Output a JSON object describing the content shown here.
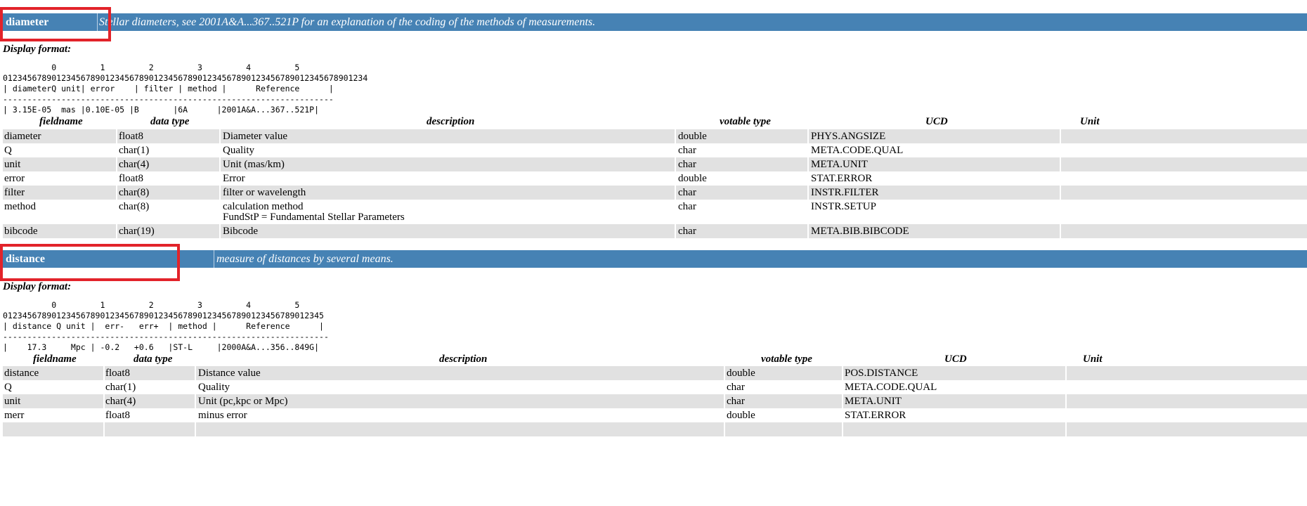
{
  "sections": [
    {
      "name": "diameter",
      "description": "Stellar diameters, see 2001A&A...367..521P for an explanation of the coding of the methods of measurements.",
      "display_format_label": "Display format:",
      "format_lines": [
        "          0         1         2         3         4         5",
        "012345678901234567890123456789012345678901234567890123456789012345678901234",
        "| diameterQ unit| error    | filter | method |      Reference      |",
        "--------------------------------------------------------------------",
        "| 3.15E-05  mas |0.10E-05 |B       |6A      |2001A&A...367..521P|"
      ],
      "columns": [
        "fieldname",
        "data type",
        "description",
        "votable type",
        "UCD",
        "Unit"
      ],
      "rows": [
        {
          "fieldname": "diameter",
          "datatype": "float8",
          "description": "Diameter value",
          "description2": "",
          "votable": "double",
          "ucd": "PHYS.ANGSIZE",
          "unit": ""
        },
        {
          "fieldname": "Q",
          "datatype": "char(1)",
          "description": "Quality",
          "description2": "",
          "votable": "char",
          "ucd": "META.CODE.QUAL",
          "unit": ""
        },
        {
          "fieldname": "unit",
          "datatype": "char(4)",
          "description": "Unit (mas/km)",
          "description2": "",
          "votable": "char",
          "ucd": "META.UNIT",
          "unit": ""
        },
        {
          "fieldname": "error",
          "datatype": "float8",
          "description": "Error",
          "description2": "",
          "votable": "double",
          "ucd": "STAT.ERROR",
          "unit": ""
        },
        {
          "fieldname": "filter",
          "datatype": "char(8)",
          "description": "filter or wavelength",
          "description2": "",
          "votable": "char",
          "ucd": "INSTR.FILTER",
          "unit": ""
        },
        {
          "fieldname": "method",
          "datatype": "char(8)",
          "description": "calculation method",
          "description2": "FundStP = Fundamental Stellar Parameters",
          "votable": "char",
          "ucd": "INSTR.SETUP",
          "unit": ""
        },
        {
          "fieldname": "bibcode",
          "datatype": "char(19)",
          "description": "Bibcode",
          "description2": "",
          "votable": "char",
          "ucd": "META.BIB.BIBCODE",
          "unit": ""
        }
      ]
    },
    {
      "name": "distance",
      "description": "measure of distances by several means.",
      "display_format_label": "Display format:",
      "format_lines": [
        "          0         1         2         3         4         5",
        "012345678901234567890123456789012345678901234567890123456789012345",
        "| distance Q unit |  err-   err+  | method |      Reference      |",
        "-------------------------------------------------------------------",
        "|    17.3     Mpc | -0.2   +0.6   |ST-L     |2000A&A...356..849G|"
      ],
      "columns": [
        "fieldname",
        "data type",
        "description",
        "votable type",
        "UCD",
        "Unit"
      ],
      "rows": [
        {
          "fieldname": "distance",
          "datatype": "float8",
          "description": "Distance value",
          "description2": "",
          "votable": "double",
          "ucd": "POS.DISTANCE",
          "unit": ""
        },
        {
          "fieldname": "Q",
          "datatype": "char(1)",
          "description": "Quality",
          "description2": "",
          "votable": "char",
          "ucd": "META.CODE.QUAL",
          "unit": ""
        },
        {
          "fieldname": "unit",
          "datatype": "char(4)",
          "description": "Unit (pc,kpc or Mpc)",
          "description2": "",
          "votable": "char",
          "ucd": "META.UNIT",
          "unit": ""
        },
        {
          "fieldname": "merr",
          "datatype": "float8",
          "description": "minus error",
          "description2": "",
          "votable": "double",
          "ucd": "STAT.ERROR",
          "unit": ""
        },
        {
          "fieldname": "",
          "datatype": "",
          "description": "",
          "description2": "",
          "votable": "",
          "ucd": "",
          "unit": ""
        }
      ]
    }
  ],
  "colors": {
    "band": "#4682b4",
    "row_shade": "#e1e1e1",
    "highlight_box": "#e2232a"
  }
}
